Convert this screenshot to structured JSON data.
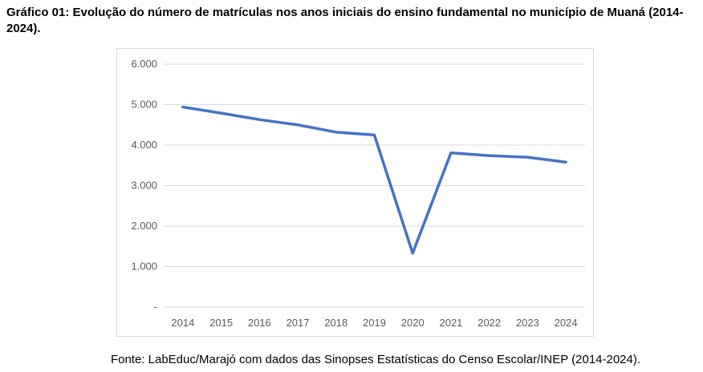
{
  "caption": "Gráfico 01: Evolução do número de matrículas nos anos iniciais do ensino fundamental no município de Muaná (2014-2024).",
  "source": "Fonte: LabEduc/Marajó com dados das Sinopses Estatísticas do Censo Escolar/INEP (2014-2024).",
  "chart_data": {
    "type": "line",
    "title": "",
    "xlabel": "",
    "ylabel": "",
    "categories": [
      "2014",
      "2015",
      "2016",
      "2017",
      "2018",
      "2019",
      "2020",
      "2021",
      "2022",
      "2023",
      "2024"
    ],
    "series": [
      {
        "values": [
          4940,
          4790,
          4630,
          4500,
          4320,
          4250,
          1330,
          3810,
          3740,
          3700,
          3580
        ],
        "color": "#4472C4"
      }
    ],
    "ylim": [
      0,
      6000
    ],
    "yticks": [
      0,
      1000,
      2000,
      3000,
      4000,
      5000,
      6000
    ],
    "ytick_labels": [
      "-",
      "1.000",
      "2.000",
      "3.000",
      "4.000",
      "5.000",
      "6.000"
    ],
    "grid": true,
    "legend": "none"
  }
}
